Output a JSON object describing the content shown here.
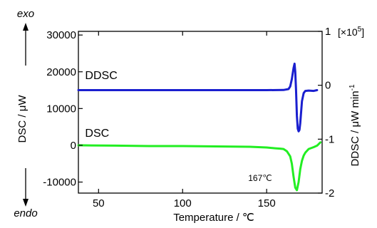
{
  "chart_data": {
    "type": "line",
    "xlabel": "Temperature  /  ℃",
    "ylabel_left": "DSC  /  μW",
    "ylabel_right": "DDSC  /  μW min",
    "ylabel_right_sup": "-1",
    "right_scale_note": "[×10",
    "right_scale_note_sup": "5",
    "right_scale_note_end": "]",
    "exo_label": "exo",
    "endo_label": "endo",
    "xlim": [
      38,
      183
    ],
    "ylim_left": [
      -13000,
      31000
    ],
    "ylim_right": [
      -2,
      1
    ],
    "x_ticks": [
      50,
      100,
      150
    ],
    "y_ticks_left": [
      -10000,
      0,
      10000,
      20000,
      30000
    ],
    "y_ticks_right": [
      -2,
      -1,
      0,
      1
    ],
    "grid": false,
    "colors": {
      "DDSC": "#1a1fcf",
      "DSC": "#22ee22"
    },
    "series": [
      {
        "name": "DDSC",
        "axis": "left",
        "x": [
          38,
          60,
          80,
          100,
          120,
          140,
          150,
          160,
          163,
          164,
          165,
          166,
          166.6,
          167,
          167.5,
          168,
          168.5,
          169,
          169.5,
          170,
          171,
          172,
          173,
          175,
          178,
          180
        ],
        "y": [
          15000,
          15000,
          15000,
          15000,
          15000,
          15000,
          15000,
          15050,
          15300,
          16000,
          18000,
          21000,
          22200,
          20000,
          15000,
          8000,
          4500,
          3800,
          4200,
          6000,
          12000,
          14200,
          14800,
          14900,
          14800,
          15000
        ]
      },
      {
        "name": "DSC",
        "axis": "left",
        "x": [
          38,
          60,
          80,
          100,
          120,
          140,
          150,
          155,
          158,
          160,
          162,
          164,
          165,
          166,
          167,
          168,
          169,
          170,
          171,
          172,
          173,
          175,
          178,
          180,
          182
        ],
        "y": [
          0,
          -100,
          -200,
          -200,
          -300,
          -400,
          -600,
          -800,
          -900,
          -1000,
          -1600,
          -3000,
          -5000,
          -8500,
          -11500,
          -12200,
          -10000,
          -6500,
          -4200,
          -2800,
          -2000,
          -1000,
          -500,
          -100,
          800
        ]
      }
    ],
    "annotations": [
      {
        "text": "DDSC",
        "x": 42,
        "y": 18000
      },
      {
        "text": "DSC",
        "x": 42,
        "y": 2300
      },
      {
        "text": "167℃",
        "x": 139,
        "y": -9700
      }
    ]
  }
}
